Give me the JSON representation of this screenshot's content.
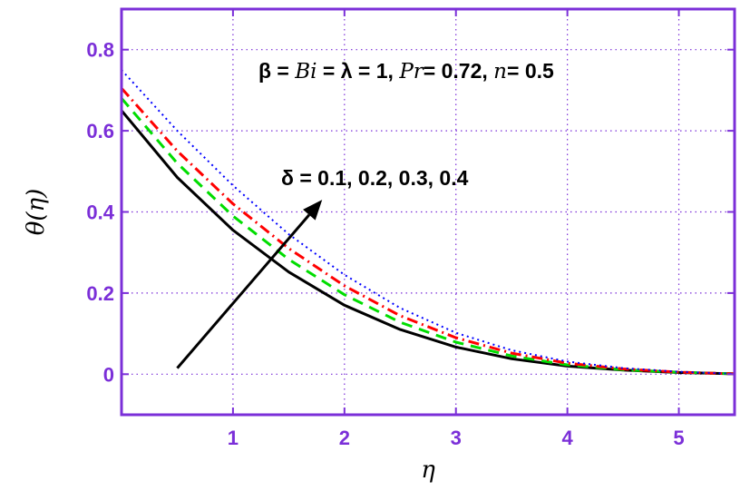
{
  "chart_data": {
    "type": "line",
    "title": "",
    "xlabel": "η",
    "ylabel": "θ(η)",
    "xlim": [
      0,
      5.5
    ],
    "ylim": [
      -0.1,
      0.9
    ],
    "xticks": [
      1,
      2,
      3,
      4,
      5
    ],
    "yticks": [
      0,
      0.2,
      0.4,
      0.6,
      0.8
    ],
    "xtick_labels": [
      "1",
      "2",
      "3",
      "4",
      "5"
    ],
    "ytick_labels": [
      "0",
      "0.2",
      "0.4",
      "0.6",
      "0.8"
    ],
    "grid": true,
    "axis_color": "#7b2fd8",
    "x": [
      0,
      0.5,
      1,
      1.5,
      2,
      2.5,
      3,
      3.5,
      4,
      4.5,
      5,
      5.5
    ],
    "series": [
      {
        "values": [
          0.65,
          0.485,
          0.355,
          0.252,
          0.17,
          0.11,
          0.067,
          0.038,
          0.02,
          0.01,
          0.004,
          0.001
        ],
        "color": "#000000",
        "style": "solid"
      },
      {
        "values": [
          0.68,
          0.52,
          0.39,
          0.283,
          0.196,
          0.128,
          0.079,
          0.045,
          0.023,
          0.011,
          0.005,
          0.001
        ],
        "color": "#00dd00",
        "style": "dashed"
      },
      {
        "values": [
          0.705,
          0.55,
          0.42,
          0.31,
          0.218,
          0.144,
          0.09,
          0.052,
          0.027,
          0.013,
          0.005,
          0.001
        ],
        "color": "#ff0000",
        "style": "dashdot"
      },
      {
        "values": [
          0.75,
          0.6,
          0.465,
          0.345,
          0.245,
          0.163,
          0.102,
          0.059,
          0.031,
          0.015,
          0.006,
          0.001
        ],
        "color": "#0000ff",
        "style": "dotted"
      }
    ],
    "annotations": {
      "params_beta": "β = ",
      "params_bi": "Bi",
      "params_mid": " = λ = 1,  ",
      "params_pr": "Pr",
      "params_pr_val": "= 0.72,  ",
      "params_n": "n",
      "params_n_val": "= 0.5",
      "delta": "δ = 0.1, 0.2, 0.3, 0.4",
      "arrow": {
        "from": [
          0.5,
          0.015
        ],
        "to": [
          1.8,
          0.43
        ]
      }
    }
  }
}
